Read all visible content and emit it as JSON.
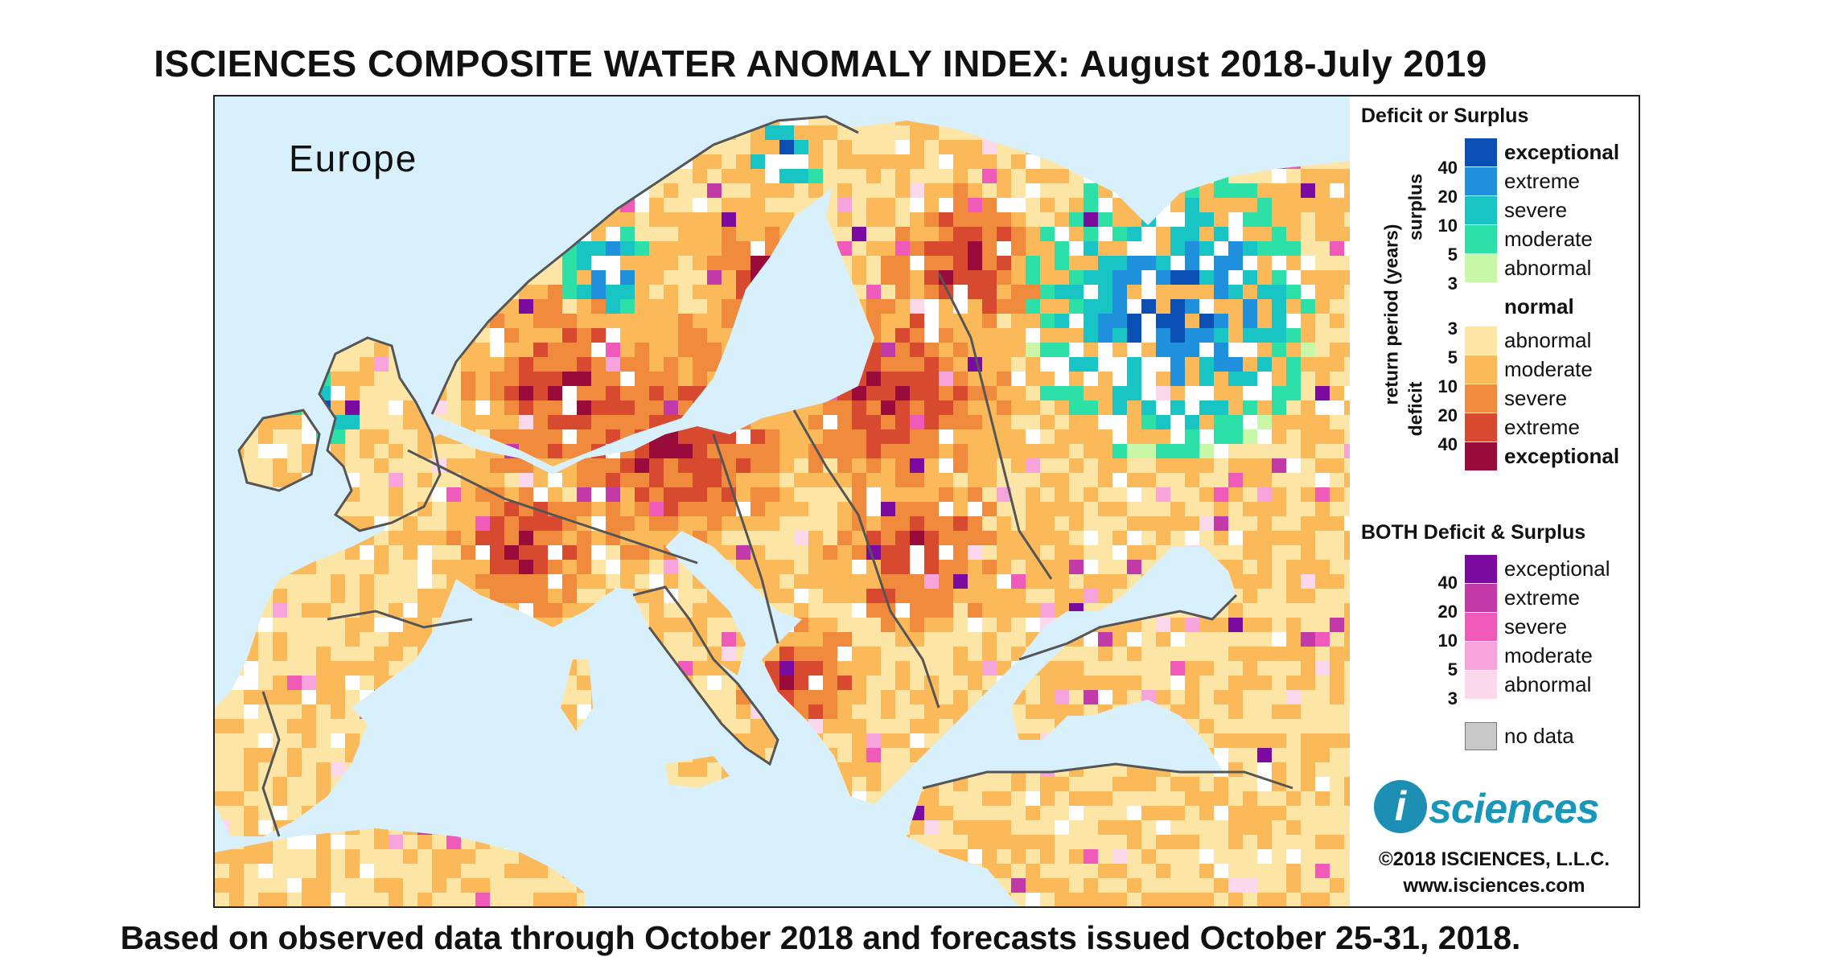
{
  "title": "ISCIENCES COMPOSITE WATER ANOMALY INDEX: August 2018-July 2019",
  "footer": "Based on observed data through October 2018 and forecasts issued October 25-31, 2018.",
  "map": {
    "region_label": "Europe",
    "colors": {
      "sea": "#d8f0fb",
      "border": "#555555"
    }
  },
  "legend": {
    "section1_title": "Deficit or Surplus",
    "axis_label": "return period (years)",
    "surplus_label": "surplus",
    "deficit_label": "deficit",
    "surplus": [
      {
        "label": "exceptional",
        "color": "#0a4fb3",
        "bold": true
      },
      {
        "label": "extreme",
        "color": "#1e90dc",
        "bold": false
      },
      {
        "label": "severe",
        "color": "#19c4c4",
        "bold": false
      },
      {
        "label": "moderate",
        "color": "#2de0a8",
        "bold": false
      },
      {
        "label": "abnormal",
        "color": "#c9f7a8",
        "bold": false
      }
    ],
    "surplus_ticks": [
      "40",
      "20",
      "10",
      "5",
      "3"
    ],
    "normal": {
      "label": "normal",
      "color": "#ffffff"
    },
    "deficit": [
      {
        "label": "abnormal",
        "color": "#fde5a6",
        "bold": false
      },
      {
        "label": "moderate",
        "color": "#fbb95a",
        "bold": false
      },
      {
        "label": "severe",
        "color": "#f08a3c",
        "bold": false
      },
      {
        "label": "extreme",
        "color": "#d84a30",
        "bold": false
      },
      {
        "label": "exceptional",
        "color": "#980b3b",
        "bold": true
      }
    ],
    "deficit_ticks": [
      "3",
      "5",
      "10",
      "20",
      "40"
    ],
    "section2_title": "BOTH Deficit & Surplus",
    "both": [
      {
        "label": "exceptional",
        "color": "#7a0aa0"
      },
      {
        "label": "extreme",
        "color": "#c23aa8"
      },
      {
        "label": "severe",
        "color": "#f05ab8"
      },
      {
        "label": "moderate",
        "color": "#f8a4dc"
      },
      {
        "label": "abnormal",
        "color": "#fcd8ec"
      }
    ],
    "both_ticks": [
      "40",
      "20",
      "10",
      "5",
      "3"
    ],
    "nodata": {
      "label": "no data",
      "color": "#c8c8c8"
    }
  },
  "logo_text": "sciences",
  "logo_letter": "i",
  "copyright": "©2018 ISCIENCES, L.L.C.",
  "website": "www.isciences.com"
}
